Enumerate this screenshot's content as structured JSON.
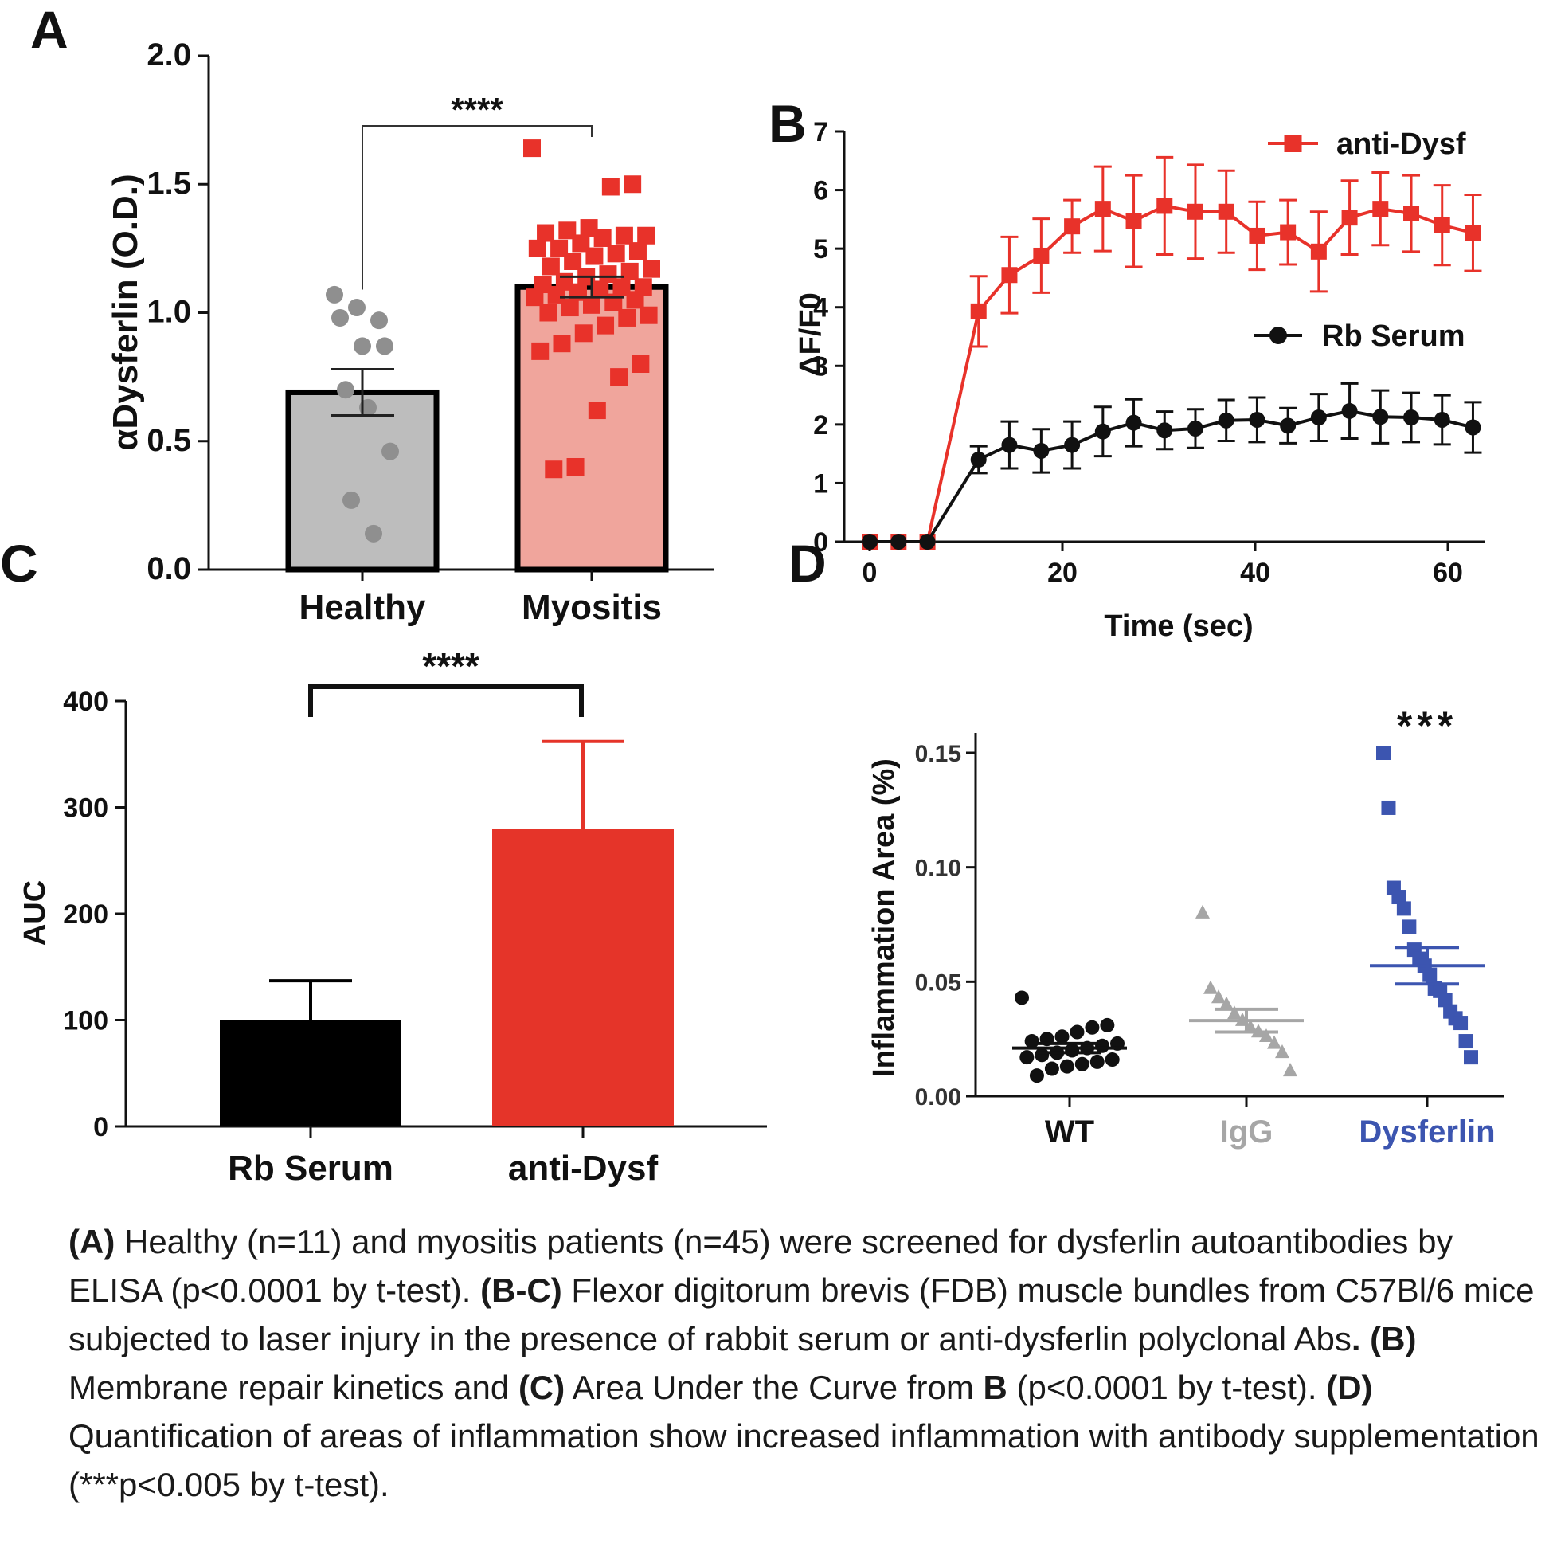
{
  "chart_data": [
    {
      "panel": "A",
      "type": "bar",
      "ylabel": "αDysferlin (O.D.)",
      "ylim": [
        0,
        2.0
      ],
      "yticks": [
        "0.0",
        "0.5",
        "1.0",
        "1.5",
        "2.0"
      ],
      "categories": [
        "Healthy",
        "Myositis"
      ],
      "values": [
        0.69,
        1.1
      ],
      "sem": [
        0.09,
        0.04
      ],
      "colors": [
        "#bdbdbd",
        "#f0a59c"
      ],
      "points": [
        [
          1.07,
          1.02,
          0.97,
          0.98,
          0.87,
          0.87,
          0.7,
          0.63,
          0.46,
          0.27,
          0.14
        ],
        [
          1.64,
          1.5,
          1.49,
          1.33,
          1.32,
          1.31,
          1.3,
          1.3,
          1.29,
          1.27,
          1.25,
          1.25,
          1.24,
          1.23,
          1.22,
          1.2,
          1.18,
          1.17,
          1.16,
          1.15,
          1.14,
          1.12,
          1.11,
          1.1,
          1.1,
          1.09,
          1.08,
          1.07,
          1.06,
          1.05,
          1.04,
          1.03,
          1.02,
          1.0,
          0.99,
          0.98,
          0.95,
          0.92,
          0.88,
          0.85,
          0.8,
          0.75,
          0.62,
          0.4,
          0.39
        ]
      ],
      "significance": "****"
    },
    {
      "panel": "B",
      "type": "line",
      "xlabel": "Time (sec)",
      "ylabel": "ΔF/F0",
      "xlim": [
        0,
        64
      ],
      "ylim": [
        0,
        7
      ],
      "xticks": [
        "0",
        "20",
        "40",
        "60"
      ],
      "yticks": [
        "0",
        "1",
        "2",
        "3",
        "4",
        "5",
        "6",
        "7"
      ],
      "legend_position": "top-right",
      "x": [
        0,
        3,
        6,
        11.3,
        14.5,
        17.8,
        21,
        24.2,
        27.4,
        30.6,
        33.8,
        37,
        40.2,
        43.4,
        46.6,
        49.8,
        53,
        56.2,
        59.4,
        62.6
      ],
      "series": [
        {
          "name": "anti-Dysf",
          "color": "#e8322a",
          "marker": "square",
          "values": [
            0,
            0,
            0,
            3.93,
            4.55,
            4.88,
            5.38,
            5.68,
            5.47,
            5.73,
            5.63,
            5.63,
            5.22,
            5.28,
            4.95,
            5.53,
            5.68,
            5.6,
            5.4,
            5.27
          ],
          "errors": [
            0,
            0,
            0,
            0.6,
            0.65,
            0.63,
            0.45,
            0.72,
            0.78,
            0.83,
            0.8,
            0.7,
            0.58,
            0.55,
            0.68,
            0.63,
            0.62,
            0.65,
            0.68,
            0.65
          ]
        },
        {
          "name": "Rb Serum",
          "color": "#111111",
          "marker": "circle",
          "values": [
            0,
            0,
            0,
            1.4,
            1.65,
            1.55,
            1.65,
            1.88,
            2.03,
            1.9,
            1.93,
            2.07,
            2.08,
            1.98,
            2.12,
            2.23,
            2.13,
            2.12,
            2.08,
            1.95
          ],
          "errors": [
            0,
            0,
            0,
            0.23,
            0.4,
            0.37,
            0.4,
            0.42,
            0.4,
            0.32,
            0.33,
            0.35,
            0.38,
            0.3,
            0.4,
            0.47,
            0.45,
            0.42,
            0.42,
            0.43
          ]
        }
      ]
    },
    {
      "panel": "C",
      "type": "bar",
      "ylabel": "AUC",
      "ylim": [
        0,
        400
      ],
      "yticks": [
        "0",
        "100",
        "200",
        "300",
        "400"
      ],
      "categories": [
        "Rb Serum",
        "anti-Dysf"
      ],
      "values": [
        100,
        280
      ],
      "errors": [
        37,
        82
      ],
      "colors": [
        "#000000",
        "#e53429"
      ],
      "significance": "****"
    },
    {
      "panel": "D",
      "type": "scatter",
      "ylabel": "Inflammation Area (%)",
      "ylim": [
        0,
        0.16
      ],
      "yticks": [
        "0.00",
        "0.05",
        "0.10",
        "0.15"
      ],
      "categories": [
        "WT",
        "IgG",
        "Dysferlin"
      ],
      "colors": [
        "#111111",
        "#a6a6a6",
        "#3c55b0"
      ],
      "markers": [
        "circle",
        "triangle",
        "square"
      ],
      "means": [
        0.021,
        0.033,
        0.057
      ],
      "sem": [
        0.002,
        0.005,
        0.008
      ],
      "points": [
        [
          0.043,
          0.031,
          0.03,
          0.028,
          0.026,
          0.025,
          0.024,
          0.023,
          0.022,
          0.021,
          0.02,
          0.019,
          0.018,
          0.017,
          0.016,
          0.015,
          0.014,
          0.013,
          0.012,
          0.009
        ],
        [
          0.08,
          0.047,
          0.043,
          0.04,
          0.036,
          0.033,
          0.03,
          0.028,
          0.026,
          0.023,
          0.019,
          0.011
        ],
        [
          0.15,
          0.126,
          0.091,
          0.087,
          0.082,
          0.074,
          0.064,
          0.06,
          0.057,
          0.053,
          0.047,
          0.046,
          0.042,
          0.037,
          0.034,
          0.032,
          0.024,
          0.017
        ]
      ],
      "significance": "***"
    }
  ],
  "panel_letters": [
    "A",
    "B",
    "C",
    "D"
  ],
  "caption": [
    {
      "text": "(A)",
      "bold": true
    },
    {
      "text": " Healthy (n=11) and myositis patients (n=45) were screened for dysferlin autoantibodies by ELISA (p<0.0001 by t-test). ",
      "bold": false
    },
    {
      "text": "(B-C)",
      "bold": true
    },
    {
      "text": " Flexor digitorum brevis (FDB) muscle bundles from C57Bl/6 mice subjected to laser injury in the presence of rabbit serum or anti-dysferlin polyclonal Abs",
      "bold": false
    },
    {
      "text": ".",
      "bold": true
    },
    {
      "text": " ",
      "bold": false
    },
    {
      "text": "(B)",
      "bold": true
    },
    {
      "text": " Membrane repair kinetics and ",
      "bold": false
    },
    {
      "text": "(C)",
      "bold": true
    },
    {
      "text": " Area Under the Curve from ",
      "bold": false
    },
    {
      "text": "B",
      "bold": true
    },
    {
      "text": " (p<0.0001 by t-test). ",
      "bold": false
    },
    {
      "text": "(D)",
      "bold": true
    },
    {
      "text": " Quantification of areas of inflammation show increased inflammation with antibody supplementation (***p<0.005 by t-test).",
      "bold": false
    }
  ]
}
